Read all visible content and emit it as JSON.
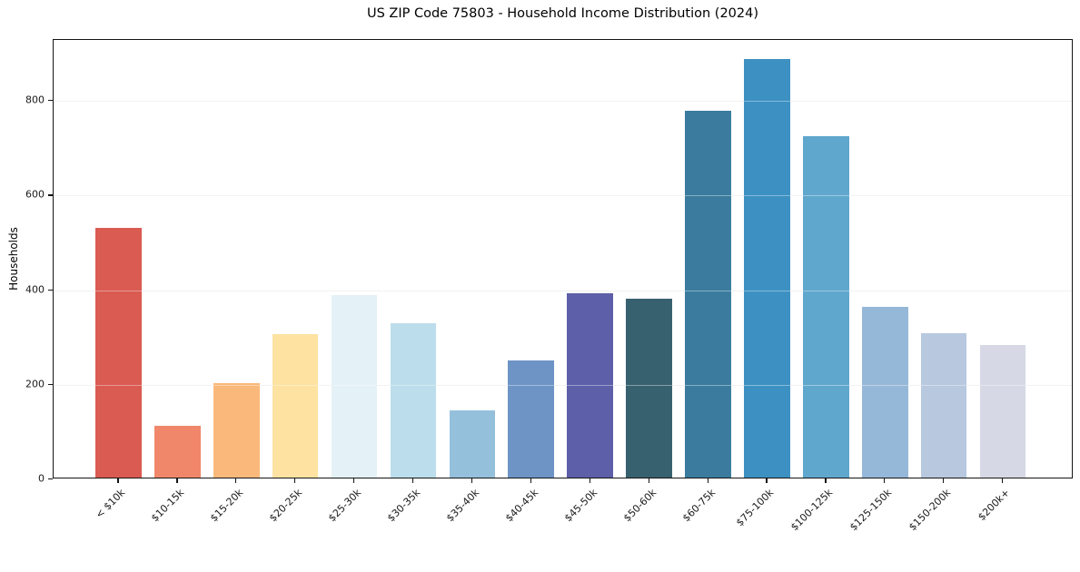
{
  "chart_data": {
    "type": "bar",
    "title": "US ZIP Code 75803 - Household Income Distribution (2024)",
    "xlabel": "",
    "ylabel": "Households",
    "categories": [
      "< $10k",
      "$10-15k",
      "$15-20k",
      "$20-25k",
      "$25-30k",
      "$30-35k",
      "$35-40k",
      "$40-45k",
      "$45-50k",
      "$50-60k",
      "$60-75k",
      "$75-100k",
      "$100-125k",
      "$125-150k",
      "$150-200k",
      "$200k+"
    ],
    "values": [
      527,
      110,
      200,
      303,
      385,
      327,
      143,
      247,
      389,
      379,
      775,
      885,
      722,
      361,
      305,
      280
    ],
    "bar_colors": [
      "#d95b52",
      "#f0876a",
      "#fab97b",
      "#fde2a1",
      "#e4f1f6",
      "#bcddeb",
      "#95c0dc",
      "#6d94c5",
      "#5d5fa9",
      "#38616f",
      "#3b7c9e",
      "#3d91c2",
      "#60a7cd",
      "#96b8d8",
      "#b7c8df",
      "#d6d8e5"
    ],
    "yticks": [
      0,
      200,
      400,
      600,
      800
    ],
    "ylim": [
      0,
      929
    ],
    "grid": "horizontal-light",
    "legend": "none",
    "x_tick_rotation_deg": 45,
    "plot_background": "#ffffff",
    "spine_color": "#151515"
  }
}
